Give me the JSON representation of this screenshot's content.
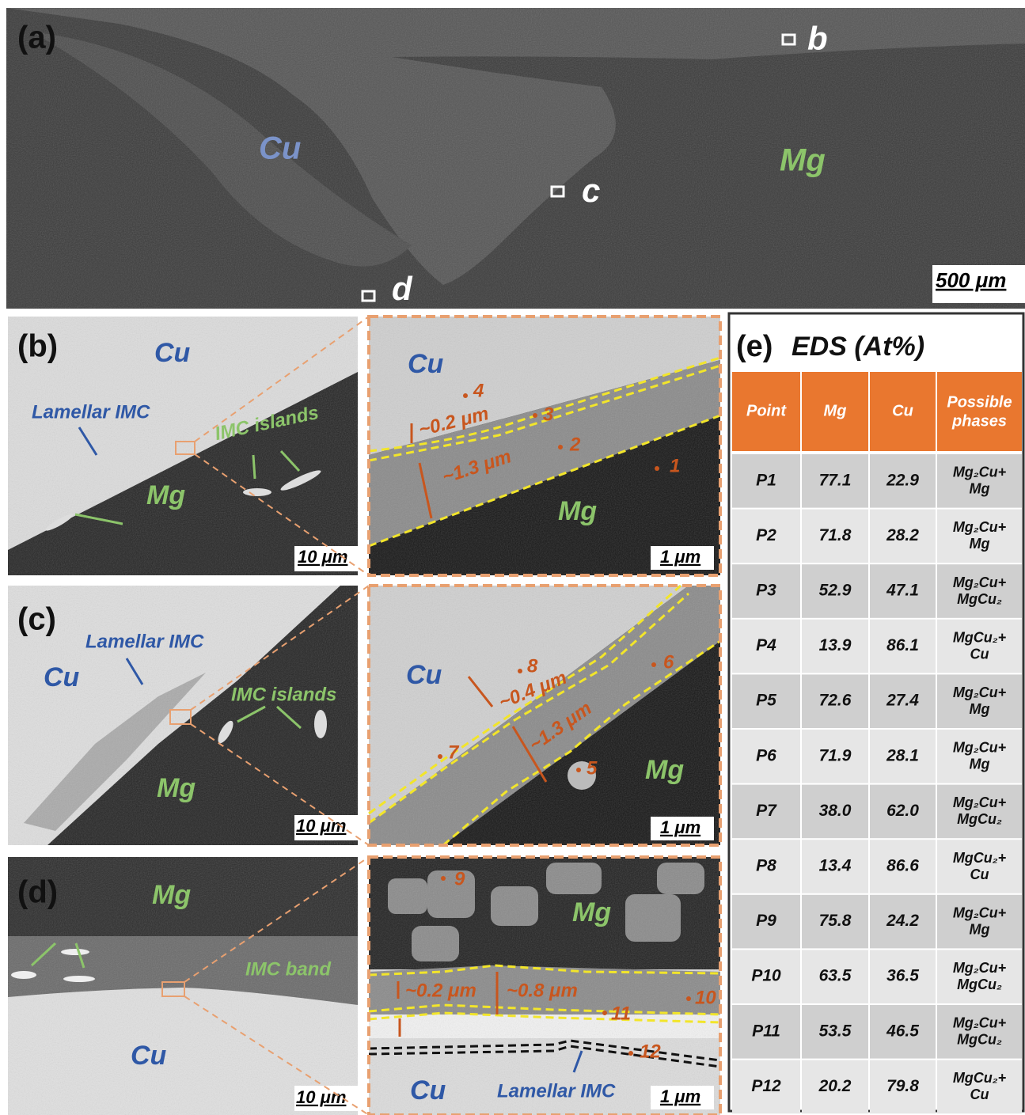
{
  "panel_a": {
    "label": "(a)",
    "markers": [
      "b",
      "c",
      "d"
    ],
    "materials": [
      "Cu",
      "Mg"
    ],
    "scale_bar": "500 μm"
  },
  "panel_b": {
    "label": "(b)",
    "overview": {
      "top": "Cu",
      "bottom": "Mg",
      "annotations": [
        "Lamellar IMC",
        "IMC islands"
      ],
      "scale_bar": "10 μm"
    },
    "detail": {
      "top": "Cu",
      "bottom": "Mg",
      "points": [
        "4",
        "3",
        "2",
        "1"
      ],
      "thicknesses": [
        "~0.2 μm",
        "~1.3 μm"
      ],
      "scale_bar": "1 μm"
    }
  },
  "panel_c": {
    "label": "(c)",
    "overview": {
      "top": "Cu",
      "bottom": "Mg",
      "annotations": [
        "Lamellar IMC",
        "IMC islands"
      ],
      "scale_bar": "10 μm"
    },
    "detail": {
      "top": "Cu",
      "bottom": "Mg",
      "points": [
        "8",
        "6",
        "7",
        "5"
      ],
      "thicknesses": [
        "~0.4 μm",
        "~1.3 μm"
      ],
      "scale_bar": "1 μm"
    }
  },
  "panel_d": {
    "label": "(d)",
    "overview": {
      "top": "Mg",
      "bottom": "Cu",
      "annotations": [
        "IMC band"
      ],
      "scale_bar": "10 μm"
    },
    "detail": {
      "top": "Mg",
      "bottom": "Cu",
      "points": [
        "9",
        "10",
        "11",
        "12"
      ],
      "thicknesses": [
        "~0.2 μm",
        "~0.8 μm"
      ],
      "annotations": [
        "Lamellar IMC"
      ],
      "scale_bar": "1 μm"
    }
  },
  "table": {
    "label": "(e)",
    "title": "EDS (At%)",
    "columns": [
      "Point",
      "Mg",
      "Cu",
      [
        "Possible",
        "phases"
      ]
    ],
    "rows": [
      [
        "P1",
        "77.1",
        "22.9",
        [
          "Mg₂Cu+",
          "Mg"
        ]
      ],
      [
        "P2",
        "71.8",
        "28.2",
        [
          "Mg₂Cu+",
          "Mg"
        ]
      ],
      [
        "P3",
        "52.9",
        "47.1",
        [
          "Mg₂Cu+",
          "MgCu₂"
        ]
      ],
      [
        "P4",
        "13.9",
        "86.1",
        [
          "MgCu₂+",
          "Cu"
        ]
      ],
      [
        "P5",
        "72.6",
        "27.4",
        [
          "Mg₂Cu+",
          "Mg"
        ]
      ],
      [
        "P6",
        "71.9",
        "28.1",
        [
          "Mg₂Cu+",
          "Mg"
        ]
      ],
      [
        "P7",
        "38.0",
        "62.0",
        [
          "Mg₂Cu+",
          "MgCu₂"
        ]
      ],
      [
        "P8",
        "13.4",
        "86.6",
        [
          "MgCu₂+",
          "Cu"
        ]
      ],
      [
        "P9",
        "75.8",
        "24.2",
        [
          "Mg₂Cu+",
          "Mg"
        ]
      ],
      [
        "P10",
        "63.5",
        "36.5",
        [
          "Mg₂Cu+",
          "MgCu₂"
        ]
      ],
      [
        "P11",
        "53.5",
        "46.5",
        [
          "Mg₂Cu+",
          "MgCu₂"
        ]
      ],
      [
        "P12",
        "20.2",
        "79.8",
        [
          "MgCu₂+",
          "Cu"
        ]
      ]
    ]
  }
}
